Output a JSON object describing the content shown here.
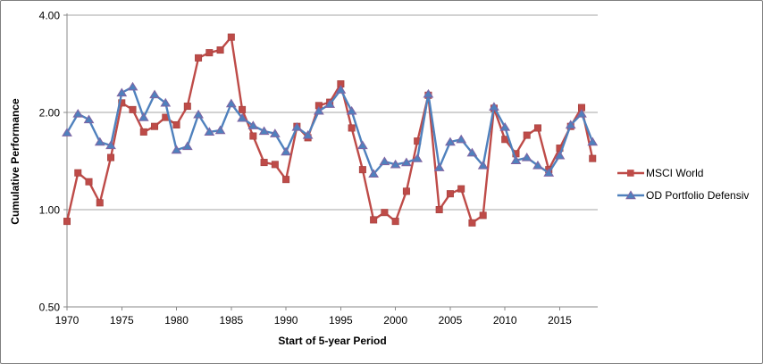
{
  "chart": {
    "y_axis": {
      "title": "Cumulative Performance",
      "ticks": [
        "4.00",
        "2.00",
        "1.00",
        "0.50"
      ],
      "tick_values": [
        4,
        2,
        1,
        0.5
      ]
    },
    "x_axis": {
      "title": "Start of 5-year Period",
      "ticks": [
        1970,
        1975,
        1980,
        1985,
        1990,
        1995,
        2000,
        2005,
        2010,
        2015
      ]
    },
    "legend": [
      {
        "label": "MSCI World",
        "color": "#BE4B48",
        "marker": "square"
      },
      {
        "label": "OD Portfolio Defensiv",
        "color": "#4F81BD",
        "marker": "triangle",
        "marker_border": "#8064A2"
      }
    ],
    "colors": {
      "gridline": "#A6A6A6",
      "axis": "#898989",
      "background": "#FFFFFF",
      "text": "#000000"
    }
  },
  "chart_data": {
    "type": "line",
    "title": "",
    "xlabel": "Start of 5-year Period",
    "ylabel": "Cumulative Performance",
    "y_scale": "log2",
    "ylim": [
      0.5,
      4.0
    ],
    "xlim": [
      1969.5,
      2018.5
    ],
    "gridlines": [
      4,
      2,
      1
    ],
    "legend_position": "right",
    "x": [
      1970,
      1971,
      1972,
      1973,
      1974,
      1975,
      1976,
      1977,
      1978,
      1979,
      1980,
      1981,
      1982,
      1983,
      1984,
      1985,
      1986,
      1987,
      1988,
      1989,
      1990,
      1991,
      1992,
      1993,
      1994,
      1995,
      1996,
      1997,
      1998,
      1999,
      2000,
      2001,
      2002,
      2003,
      2004,
      2005,
      2006,
      2007,
      2008,
      2009,
      2010,
      2011,
      2012,
      2013,
      2014,
      2015,
      2016,
      2017,
      2018
    ],
    "series": [
      {
        "name": "MSCI World",
        "color": "#BE4B48",
        "marker": "square",
        "values": [
          0.92,
          1.3,
          1.22,
          1.05,
          1.45,
          2.14,
          2.04,
          1.74,
          1.81,
          1.93,
          1.83,
          2.09,
          2.95,
          3.06,
          3.12,
          3.42,
          2.04,
          1.69,
          1.4,
          1.38,
          1.24,
          1.81,
          1.67,
          2.1,
          2.15,
          2.45,
          1.79,
          1.33,
          0.93,
          0.98,
          0.92,
          1.14,
          1.63,
          2.26,
          1.0,
          1.12,
          1.16,
          0.91,
          0.96,
          2.06,
          1.65,
          1.49,
          1.7,
          1.79,
          1.33,
          1.55,
          1.81,
          2.07,
          1.44
        ]
      },
      {
        "name": "OD Portfolio Defensiv",
        "color": "#4F81BD",
        "marker": "triangle",
        "marker_border": "#8064A2",
        "values": [
          1.73,
          1.98,
          1.9,
          1.62,
          1.58,
          2.3,
          2.4,
          1.93,
          2.27,
          2.14,
          1.53,
          1.57,
          1.97,
          1.74,
          1.76,
          2.13,
          1.92,
          1.82,
          1.75,
          1.72,
          1.51,
          1.8,
          1.7,
          2.02,
          2.12,
          2.35,
          2.02,
          1.58,
          1.29,
          1.41,
          1.38,
          1.4,
          1.44,
          2.28,
          1.35,
          1.62,
          1.65,
          1.5,
          1.37,
          2.08,
          1.8,
          1.42,
          1.45,
          1.37,
          1.3,
          1.47,
          1.83,
          1.98,
          1.62
        ]
      }
    ]
  }
}
